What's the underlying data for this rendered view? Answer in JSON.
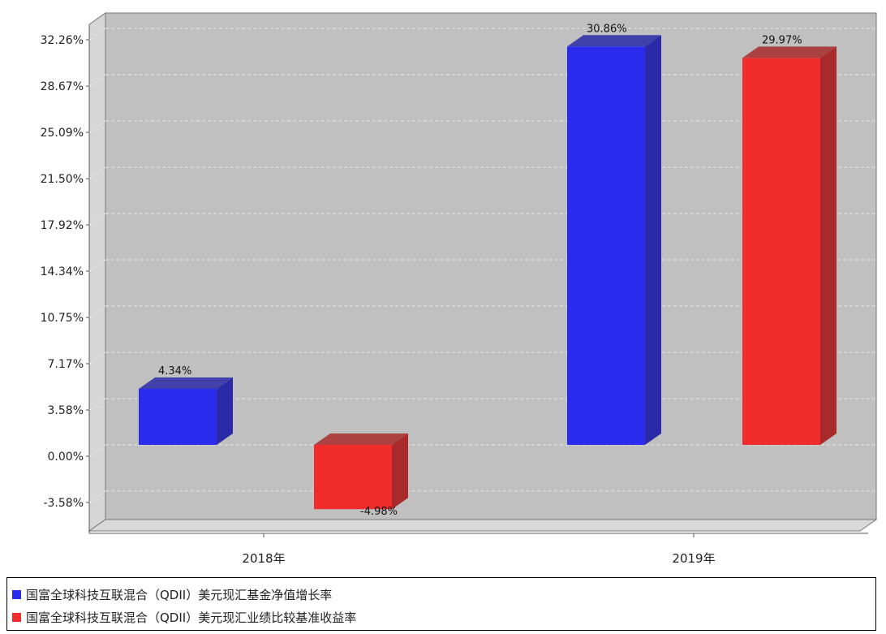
{
  "chart_data": {
    "type": "bar",
    "categories": [
      "2018年",
      "2019年"
    ],
    "series": [
      {
        "name": "国富全球科技互联混合（QDII）美元现汇基金净值增长率",
        "color": "#2b2bf0",
        "side_color": "#2a2aa8",
        "values": [
          4.34,
          30.86
        ],
        "labels": [
          "4.34%",
          "30.86%"
        ]
      },
      {
        "name": "国富全球科技互联混合（QDII）美元现汇业绩比较基准收益率",
        "color": "#f02b2b",
        "side_color": "#a82a2a",
        "values": [
          -4.98,
          29.97
        ],
        "labels": [
          "-4.98%",
          "29.97%"
        ]
      }
    ],
    "y_ticks": [
      "-3.58%",
      "0.00%",
      "3.58%",
      "7.17%",
      "10.75%",
      "14.34%",
      "17.92%",
      "21.50%",
      "25.09%",
      "28.67%",
      "32.26%"
    ],
    "y_tick_values": [
      -3.58,
      0.0,
      3.58,
      7.17,
      10.75,
      14.34,
      17.92,
      21.5,
      25.09,
      28.67,
      32.26
    ],
    "ylim": [
      -7.0,
      32.26
    ],
    "grid": true,
    "legend_position": "bottom"
  }
}
